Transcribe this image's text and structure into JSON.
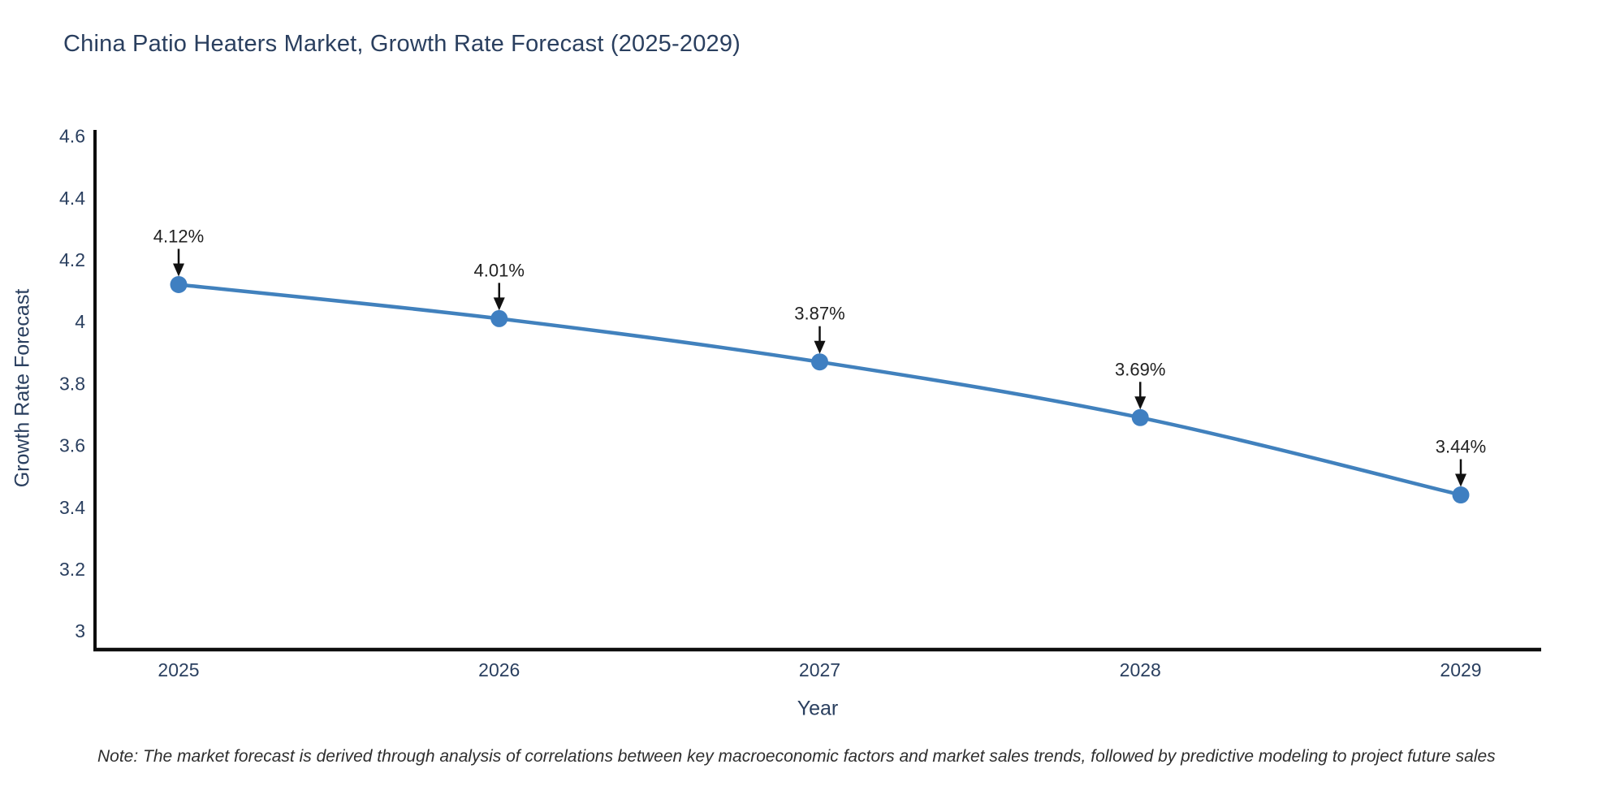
{
  "note": "Note: The market forecast is derived through analysis of correlations between key macroeconomic factors and market sales trends, followed by predictive modeling to project future sales",
  "chart_data": {
    "type": "line",
    "title": "China Patio Heaters Market, Growth Rate Forecast (2025-2029)",
    "xlabel": "Year",
    "ylabel": "Growth Rate Forecast",
    "categories": [
      "2025",
      "2026",
      "2027",
      "2028",
      "2029"
    ],
    "values": [
      4.12,
      4.01,
      3.87,
      3.69,
      3.44
    ],
    "point_labels": [
      "4.12%",
      "4.01%",
      "3.87%",
      "3.69%",
      "3.44%"
    ],
    "yticks": [
      4.6,
      4.4,
      4.2,
      4.0,
      3.8,
      3.6,
      3.4,
      3.2,
      3.0
    ],
    "ytick_labels": [
      "4.6",
      "4.4",
      "4.2",
      "4",
      "3.8",
      "3.6",
      "3.4",
      "3.2",
      "3"
    ],
    "ylim": [
      2.94,
      4.62
    ],
    "grid": false,
    "legend": "none",
    "colors": {
      "line": "#4181bd",
      "marker": "#3f7fc1",
      "axis_line": "#0d0d0d",
      "tick_label": "#2a3f5f",
      "title_text": "#2a3f5f",
      "annotation_text": "#222222",
      "annotation_arrow": "#111111"
    }
  }
}
